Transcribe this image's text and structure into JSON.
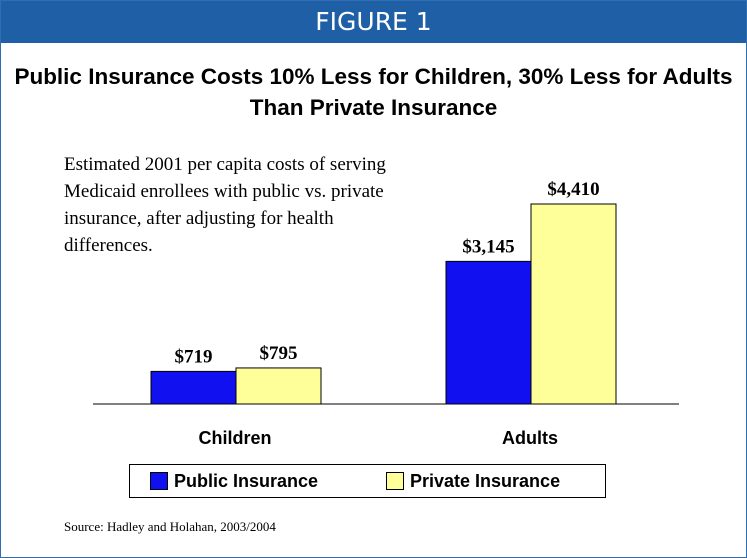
{
  "header": {
    "label": "FIGURE 1"
  },
  "title": "Public Insurance Costs 10% Less for Children, 30% Less for Adults Than Private Insurance",
  "subtitle": "Estimated 2001 per capita costs of serving Medicaid enrollees with public vs. private insurance, after adjusting for health differences.",
  "source": "Source: Hadley and Holahan, 2003/2004",
  "colors": {
    "header_bg": "#1f5fa6",
    "public": "#1010f0",
    "private": "#ffff99"
  },
  "chart_data": {
    "type": "bar",
    "categories": [
      "Children",
      "Adults"
    ],
    "series": [
      {
        "name": "Public Insurance",
        "values": [
          719,
          3145
        ],
        "labels": [
          "$719",
          "$3,145"
        ],
        "color": "#1010f0"
      },
      {
        "name": "Private Insurance",
        "values": [
          795,
          4410
        ],
        "labels": [
          "$795",
          "$4,410"
        ],
        "color": "#ffff99"
      }
    ],
    "ylim": [
      0,
      4410
    ],
    "grid": false,
    "legend": "bottom"
  }
}
